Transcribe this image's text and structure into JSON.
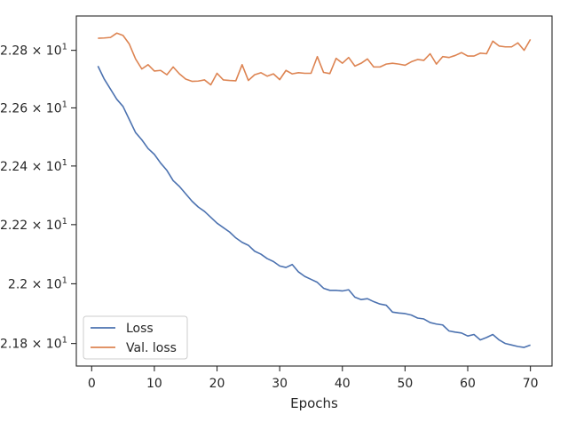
{
  "chart_data": {
    "type": "line",
    "title": "",
    "xlabel": "Epochs",
    "ylabel": "",
    "yscale": "log",
    "grid": false,
    "legend_position": "lower-left",
    "xlim": [
      -2.45,
      73.45
    ],
    "ylim": [
      21.725,
      22.92
    ],
    "xticks": [
      0,
      10,
      20,
      30,
      40,
      50,
      60,
      70
    ],
    "xtick_labels": [
      "0",
      "10",
      "20",
      "30",
      "40",
      "50",
      "60",
      "70"
    ],
    "yticks": [
      21.8,
      22.0,
      22.2,
      22.4,
      22.6,
      22.8
    ],
    "ytick_labels": [
      {
        "mantissa": "2.18",
        "exponent": "1"
      },
      {
        "mantissa": "2.2",
        "exponent": "1"
      },
      {
        "mantissa": "2.22",
        "exponent": "1"
      },
      {
        "mantissa": "2.24",
        "exponent": "1"
      },
      {
        "mantissa": "2.26",
        "exponent": "1"
      },
      {
        "mantissa": "2.28",
        "exponent": "1"
      }
    ],
    "x": [
      1,
      2,
      3,
      4,
      5,
      6,
      7,
      8,
      9,
      10,
      11,
      12,
      13,
      14,
      15,
      16,
      17,
      18,
      19,
      20,
      21,
      22,
      23,
      24,
      25,
      26,
      27,
      28,
      29,
      30,
      31,
      32,
      33,
      34,
      35,
      36,
      37,
      38,
      39,
      40,
      41,
      42,
      43,
      44,
      45,
      46,
      47,
      48,
      49,
      50,
      51,
      52,
      53,
      54,
      55,
      56,
      57,
      58,
      59,
      60,
      61,
      62,
      63,
      64,
      65,
      66,
      67,
      68,
      69,
      70
    ],
    "series": [
      {
        "name": "Loss",
        "color": "#4c72b0",
        "values": [
          22.745,
          22.7,
          22.665,
          22.63,
          22.605,
          22.56,
          22.515,
          22.49,
          22.46,
          22.44,
          22.41,
          22.385,
          22.35,
          22.33,
          22.305,
          22.28,
          22.26,
          22.245,
          22.225,
          22.205,
          22.19,
          22.175,
          22.155,
          22.14,
          22.13,
          22.11,
          22.1,
          22.085,
          22.075,
          22.06,
          22.055,
          22.065,
          22.04,
          22.025,
          22.015,
          22.005,
          21.985,
          21.978,
          21.978,
          21.976,
          21.98,
          21.955,
          21.947,
          21.95,
          21.94,
          21.932,
          21.928,
          21.905,
          21.902,
          21.9,
          21.895,
          21.885,
          21.882,
          21.87,
          21.865,
          21.862,
          21.842,
          21.838,
          21.835,
          21.825,
          21.83,
          21.812,
          21.82,
          21.83,
          21.812,
          21.8,
          21.795,
          21.79,
          21.787,
          21.795
        ]
      },
      {
        "name": "Val. loss",
        "color": "#dd8452",
        "values": [
          22.842,
          22.843,
          22.845,
          22.86,
          22.852,
          22.822,
          22.77,
          22.735,
          22.75,
          22.728,
          22.73,
          22.715,
          22.742,
          22.718,
          22.7,
          22.692,
          22.693,
          22.697,
          22.68,
          22.72,
          22.697,
          22.695,
          22.694,
          22.75,
          22.695,
          22.715,
          22.722,
          22.71,
          22.718,
          22.698,
          22.73,
          22.718,
          22.722,
          22.72,
          22.72,
          22.778,
          22.723,
          22.719,
          22.772,
          22.755,
          22.775,
          22.745,
          22.755,
          22.77,
          22.742,
          22.742,
          22.752,
          22.755,
          22.752,
          22.748,
          22.76,
          22.768,
          22.765,
          22.788,
          22.752,
          22.778,
          22.775,
          22.782,
          22.792,
          22.78,
          22.78,
          22.79,
          22.788,
          22.832,
          22.815,
          22.812,
          22.812,
          22.826,
          22.8,
          22.838
        ]
      }
    ]
  }
}
